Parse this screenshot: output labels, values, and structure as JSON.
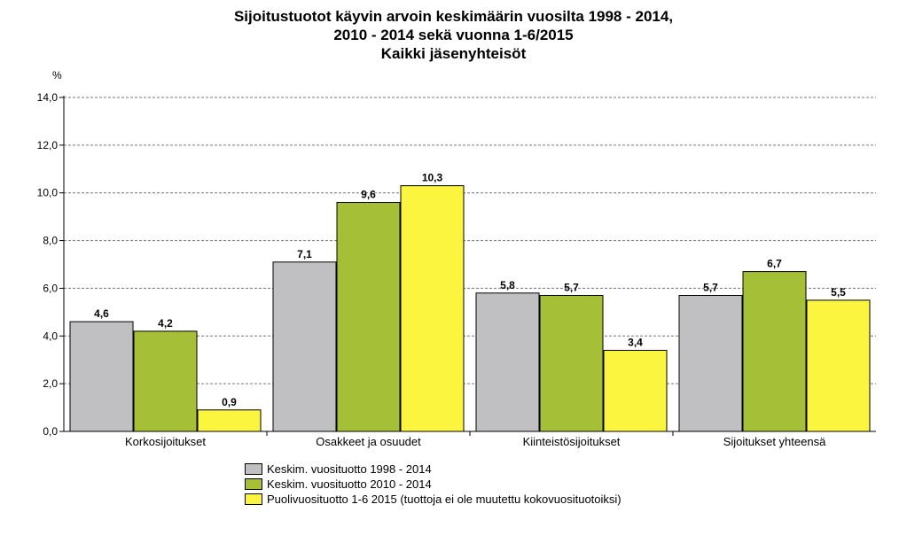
{
  "chart_data": {
    "type": "bar",
    "title_lines": [
      "Sijoitustuotot käyvin arvoin keskimäärin vuosilta 1998 - 2014,",
      "2010 - 2014 sekä vuonna 1-6/2015",
      "Kaikki jäsenyhteisöt"
    ],
    "ylabel": "%",
    "ylim": [
      0,
      14
    ],
    "ytick_labels": [
      "0,0",
      "2,0",
      "4,0",
      "6,0",
      "8,0",
      "10,0",
      "12,0",
      "14,0"
    ],
    "grid": true,
    "categories": [
      "Korkosijoitukset",
      "Osakkeet ja osuudet",
      "Kiinteistösijoitukset",
      "Sijoitukset yhteensä"
    ],
    "series": [
      {
        "name": "Keskim. vuosituotto 1998 - 2014",
        "color": "#c0c0c2",
        "values": [
          4.6,
          7.1,
          5.8,
          5.7
        ],
        "labels": [
          "4,6",
          "7,1",
          "5,8",
          "5,7"
        ]
      },
      {
        "name": "Keskim. vuosituotto 2010 - 2014",
        "color": "#a5bf37",
        "values": [
          4.2,
          9.6,
          5.7,
          6.7
        ],
        "labels": [
          "4,2",
          "9,6",
          "5,7",
          "6,7"
        ]
      },
      {
        "name": "Puolivuosituotto 1-6 2015 (tuottoja ei ole muutettu kokovuosituotoiksi)",
        "color": "#fcf53f",
        "values": [
          0.9,
          10.3,
          3.4,
          5.5
        ],
        "labels": [
          "0,9",
          "10,3",
          "3,4",
          "5,5"
        ]
      }
    ],
    "legend_position": "bottom-left"
  }
}
